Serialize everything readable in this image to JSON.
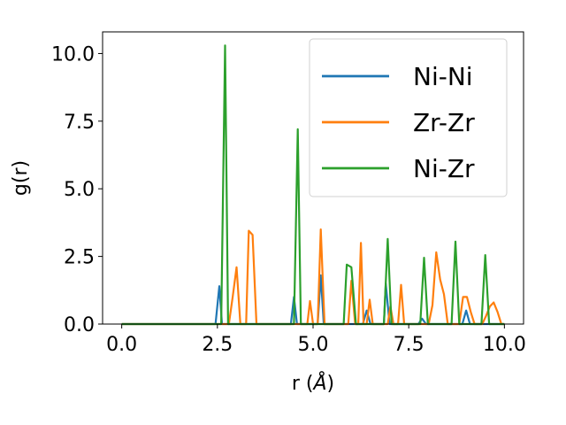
{
  "chart_data": {
    "type": "line",
    "title": "",
    "xlabel": "r (Å)",
    "ylabel": "g(r)",
    "xlim": [
      -0.5,
      10.5
    ],
    "ylim": [
      0.0,
      10.8
    ],
    "xticks": [
      "0.0",
      "2.5",
      "5.0",
      "7.5",
      "10.0"
    ],
    "yticks": [
      "0.0",
      "2.5",
      "5.0",
      "7.5",
      "10.0"
    ],
    "grid": false,
    "legend_position": "top-right",
    "series": [
      {
        "name": "Ni-Ni",
        "color": "#1f77b4",
        "points": [
          [
            0,
            0
          ],
          [
            2.45,
            0
          ],
          [
            2.55,
            1.4
          ],
          [
            2.62,
            0
          ],
          [
            4.42,
            0
          ],
          [
            4.5,
            1.0
          ],
          [
            4.58,
            0
          ],
          [
            5.12,
            0
          ],
          [
            5.2,
            1.8
          ],
          [
            5.28,
            0
          ],
          [
            6.3,
            0
          ],
          [
            6.4,
            0.5
          ],
          [
            6.5,
            0
          ],
          [
            6.85,
            0
          ],
          [
            6.9,
            1.5
          ],
          [
            7.0,
            0
          ],
          [
            7.75,
            0
          ],
          [
            7.85,
            0.2
          ],
          [
            7.95,
            0
          ],
          [
            8.9,
            0
          ],
          [
            9.0,
            0.5
          ],
          [
            9.1,
            0
          ],
          [
            10,
            0
          ]
        ]
      },
      {
        "name": "Zr-Zr",
        "color": "#ff7f0e",
        "points": [
          [
            0,
            0
          ],
          [
            2.8,
            0
          ],
          [
            2.9,
            1.0
          ],
          [
            3.0,
            2.1
          ],
          [
            3.1,
            0
          ],
          [
            3.25,
            0
          ],
          [
            3.32,
            3.45
          ],
          [
            3.42,
            3.3
          ],
          [
            3.52,
            0
          ],
          [
            4.85,
            0
          ],
          [
            4.92,
            0.85
          ],
          [
            5.0,
            0
          ],
          [
            5.12,
            0
          ],
          [
            5.2,
            3.5
          ],
          [
            5.3,
            0
          ],
          [
            5.92,
            0
          ],
          [
            6.0,
            1.6
          ],
          [
            6.1,
            0
          ],
          [
            6.18,
            0
          ],
          [
            6.25,
            3.0
          ],
          [
            6.32,
            0
          ],
          [
            6.4,
            0
          ],
          [
            6.48,
            0.9
          ],
          [
            6.56,
            0
          ],
          [
            6.95,
            0
          ],
          [
            7.02,
            0.65
          ],
          [
            7.1,
            0
          ],
          [
            7.22,
            0
          ],
          [
            7.3,
            1.45
          ],
          [
            7.38,
            0
          ],
          [
            8.02,
            0
          ],
          [
            8.12,
            0.7
          ],
          [
            8.22,
            2.65
          ],
          [
            8.32,
            1.65
          ],
          [
            8.42,
            1.1
          ],
          [
            8.52,
            0
          ],
          [
            8.82,
            0
          ],
          [
            8.92,
            1.0
          ],
          [
            9.02,
            1.0
          ],
          [
            9.12,
            0.45
          ],
          [
            9.22,
            0
          ],
          [
            9.42,
            0
          ],
          [
            9.52,
            0.3
          ],
          [
            9.62,
            0.65
          ],
          [
            9.72,
            0.8
          ],
          [
            9.82,
            0.45
          ],
          [
            9.92,
            0
          ],
          [
            10,
            0
          ]
        ]
      },
      {
        "name": "Ni-Zr",
        "color": "#2ca02c",
        "points": [
          [
            0,
            0
          ],
          [
            2.6,
            0
          ],
          [
            2.7,
            10.3
          ],
          [
            2.78,
            0
          ],
          [
            4.5,
            0
          ],
          [
            4.6,
            7.2
          ],
          [
            4.68,
            0
          ],
          [
            5.8,
            0
          ],
          [
            5.88,
            2.2
          ],
          [
            6.0,
            2.1
          ],
          [
            6.12,
            0
          ],
          [
            6.85,
            0
          ],
          [
            6.95,
            3.15
          ],
          [
            7.05,
            0
          ],
          [
            7.8,
            0
          ],
          [
            7.9,
            2.45
          ],
          [
            8.0,
            0
          ],
          [
            8.62,
            0
          ],
          [
            8.72,
            3.05
          ],
          [
            8.82,
            0
          ],
          [
            9.4,
            0
          ],
          [
            9.5,
            2.55
          ],
          [
            9.6,
            0
          ],
          [
            10,
            0
          ]
        ]
      }
    ]
  }
}
